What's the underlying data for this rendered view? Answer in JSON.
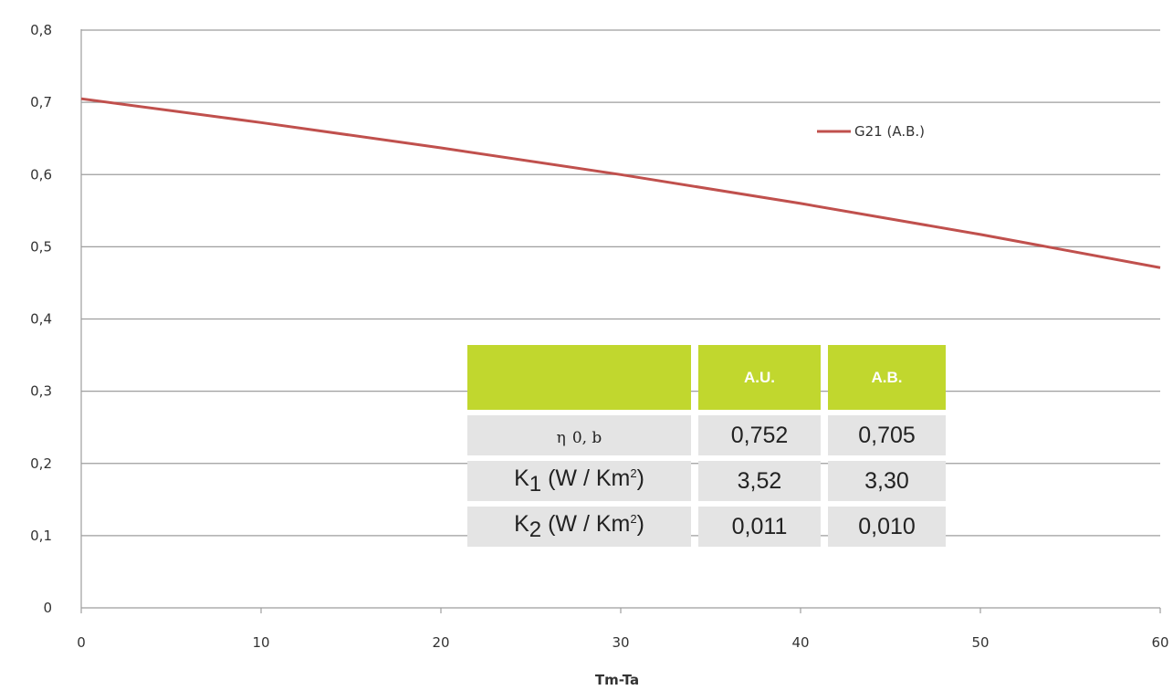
{
  "colors": {
    "line": "#c0504d",
    "grid": "#9e9e9e",
    "axis": "#9e9e9e",
    "table_header": "#c1d72e",
    "table_cell": "#e4e4e4"
  },
  "chart_data": {
    "type": "line",
    "xlabel": "Tm-Ta",
    "ylabel": "",
    "xlim": [
      0,
      60
    ],
    "ylim": [
      0,
      0.8
    ],
    "x_ticks": [
      "0",
      "10",
      "20",
      "30",
      "40",
      "50",
      "60"
    ],
    "y_ticks": [
      "0",
      "0,1",
      "0,2",
      "0,3",
      "0,4",
      "0,5",
      "0,6",
      "0,7",
      "0,8"
    ],
    "grid": "horizontal",
    "legend_position": "top-right",
    "series": [
      {
        "name": "G21 (A.B.)",
        "color": "#c0504d",
        "x": [
          0,
          10,
          20,
          30,
          40,
          50,
          60
        ],
        "y": [
          0.705,
          0.672,
          0.637,
          0.6,
          0.56,
          0.517,
          0.471
        ]
      }
    ]
  },
  "table": {
    "headers": [
      "",
      "A.U.",
      "A.B."
    ],
    "rows": [
      {
        "label_main": "η",
        "label_sub": "0, b",
        "au": "0,752",
        "ab": "0,705"
      },
      {
        "label_main": "K",
        "label_sub": "1",
        "label_rest": " (W / Km",
        "label_sup": "2",
        "label_end": ")",
        "au": "3,52",
        "ab": "3,30"
      },
      {
        "label_main": "K",
        "label_sub": "2",
        "label_rest": " (W / Km",
        "label_sup": "2",
        "label_end": ")",
        "au": "0,011",
        "ab": "0,010"
      }
    ]
  }
}
